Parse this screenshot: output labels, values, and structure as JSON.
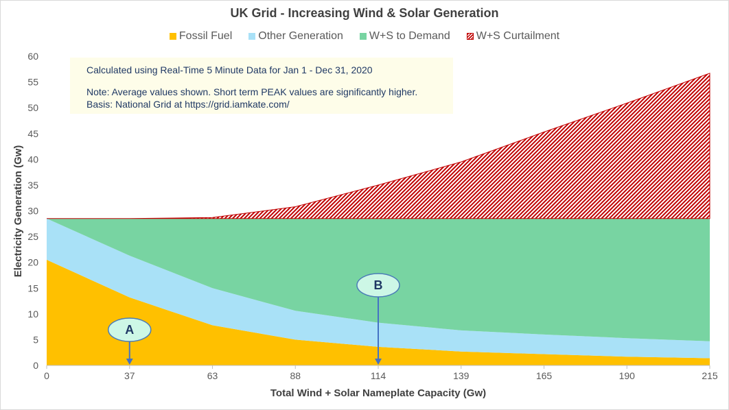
{
  "chart_data": {
    "type": "area",
    "title": "UK Grid - Increasing Wind & Solar Generation",
    "xlabel": "Total Wind + Solar Nameplate Capacity (Gw)",
    "ylabel": "Electricity Generation (Gw)",
    "x": [
      0,
      37,
      63,
      88,
      114,
      139,
      165,
      190,
      215
    ],
    "ylim": [
      0,
      60
    ],
    "yticks": [
      0,
      5,
      10,
      15,
      20,
      25,
      30,
      35,
      40,
      45,
      50,
      55,
      60
    ],
    "stacked": true,
    "legend_position": "top",
    "series": [
      {
        "name": "Fossil Fuel",
        "color": "#ffc000",
        "values": [
          20.5,
          13.2,
          7.8,
          5.0,
          3.6,
          2.7,
          2.2,
          1.7,
          1.4
        ]
      },
      {
        "name": "Other Generation",
        "color": "#a9e1f7",
        "values": [
          8.0,
          8.1,
          7.2,
          5.6,
          4.7,
          4.1,
          3.8,
          3.6,
          3.3
        ]
      },
      {
        "name": "W+S to Demand",
        "color": "#78d4a2",
        "values": [
          0.0,
          7.2,
          13.5,
          17.9,
          20.2,
          21.7,
          22.5,
          23.2,
          23.8
        ]
      },
      {
        "name": "W+S Curtailment",
        "color": "#c00000",
        "pattern": "hatch",
        "values": [
          0.0,
          0.0,
          0.2,
          2.3,
          6.5,
          11.0,
          16.8,
          22.4,
          28.2
        ]
      }
    ],
    "annotations": [
      {
        "label": "A",
        "x": 37
      },
      {
        "label": "B",
        "x": 114
      }
    ]
  },
  "note": {
    "line1": "Calculated using Real-Time 5 Minute Data for Jan 1 - Dec 31, 2020",
    "line2": "Note: Average values shown.  Short term PEAK values are significantly higher.",
    "line3": "Basis: National Grid at https://grid.iamkate.com/"
  }
}
